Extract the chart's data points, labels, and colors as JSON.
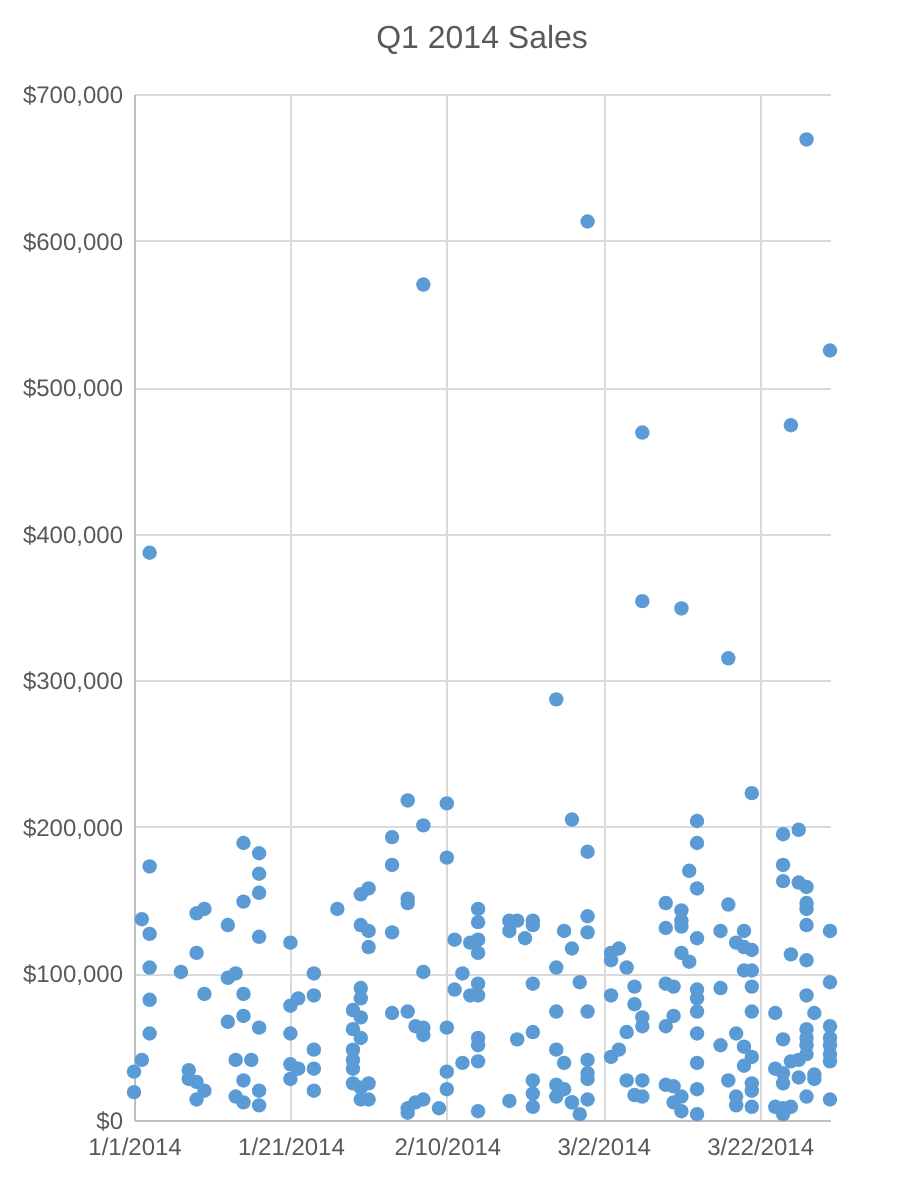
{
  "chart_data": {
    "type": "scatter",
    "title": "Q1 2014 Sales",
    "marker": "circle",
    "grid": true,
    "xlim": [
      "2014-01-01",
      "2014-03-31"
    ],
    "xticks": [
      {
        "value": "2014-01-01",
        "label": "1/1/2014"
      },
      {
        "value": "2014-01-21",
        "label": "1/21/2014"
      },
      {
        "value": "2014-02-10",
        "label": "2/10/2014"
      },
      {
        "value": "2014-03-02",
        "label": "3/2/2014"
      },
      {
        "value": "2014-03-22",
        "label": "3/22/2014"
      }
    ],
    "ylim": [
      0,
      700000
    ],
    "yticks": [
      {
        "value": 0,
        "label": "$0"
      },
      {
        "value": 100000,
        "label": "$100,000"
      },
      {
        "value": 200000,
        "label": "$200,000"
      },
      {
        "value": 300000,
        "label": "$300,000"
      },
      {
        "value": 400000,
        "label": "$400,000"
      },
      {
        "value": 500000,
        "label": "$500,000"
      },
      {
        "value": 600000,
        "label": "$600,000"
      },
      {
        "value": 700000,
        "label": "$700,000"
      }
    ],
    "series": [
      {
        "color": "#5b9bd5",
        "x": [
          "2014-01-01",
          "2014-01-01",
          "2014-01-02",
          "2014-01-02",
          "2014-01-03",
          "2014-01-03",
          "2014-01-03",
          "2014-01-03",
          "2014-01-03",
          "2014-01-03",
          "2014-01-07",
          "2014-01-08",
          "2014-01-08",
          "2014-01-09",
          "2014-01-09",
          "2014-01-09",
          "2014-01-09",
          "2014-01-10",
          "2014-01-10",
          "2014-01-10",
          "2014-01-13",
          "2014-01-13",
          "2014-01-13",
          "2014-01-14",
          "2014-01-14",
          "2014-01-14",
          "2014-01-15",
          "2014-01-15",
          "2014-01-15",
          "2014-01-15",
          "2014-01-15",
          "2014-01-15",
          "2014-01-16",
          "2014-01-17",
          "2014-01-17",
          "2014-01-17",
          "2014-01-17",
          "2014-01-17",
          "2014-01-17",
          "2014-01-17",
          "2014-01-21",
          "2014-01-21",
          "2014-01-21",
          "2014-01-21",
          "2014-01-21",
          "2014-01-22",
          "2014-01-22",
          "2014-01-24",
          "2014-01-24",
          "2014-01-24",
          "2014-01-24",
          "2014-01-24",
          "2014-01-27",
          "2014-01-29",
          "2014-01-29",
          "2014-01-29",
          "2014-01-29",
          "2014-01-29",
          "2014-01-29",
          "2014-01-30",
          "2014-01-30",
          "2014-01-30",
          "2014-01-30",
          "2014-01-30",
          "2014-01-30",
          "2014-01-30",
          "2014-01-30",
          "2014-01-31",
          "2014-01-31",
          "2014-01-31",
          "2014-01-31",
          "2014-01-31",
          "2014-02-03",
          "2014-02-03",
          "2014-02-03",
          "2014-02-03",
          "2014-02-05",
          "2014-02-05",
          "2014-02-05",
          "2014-02-05",
          "2014-02-05",
          "2014-02-05",
          "2014-02-06",
          "2014-02-06",
          "2014-02-07",
          "2014-02-07",
          "2014-02-07",
          "2014-02-07",
          "2014-02-07",
          "2014-02-07",
          "2014-02-09",
          "2014-02-10",
          "2014-02-10",
          "2014-02-10",
          "2014-02-10",
          "2014-02-10",
          "2014-02-11",
          "2014-02-11",
          "2014-02-12",
          "2014-02-12",
          "2014-02-13",
          "2014-02-13",
          "2014-02-14",
          "2014-02-14",
          "2014-02-14",
          "2014-02-14",
          "2014-02-14",
          "2014-02-14",
          "2014-02-14",
          "2014-02-14",
          "2014-02-14",
          "2014-02-14",
          "2014-02-18",
          "2014-02-18",
          "2014-02-18",
          "2014-02-19",
          "2014-02-19",
          "2014-02-20",
          "2014-02-21",
          "2014-02-21",
          "2014-02-21",
          "2014-02-21",
          "2014-02-21",
          "2014-02-21",
          "2014-02-21",
          "2014-02-24",
          "2014-02-24",
          "2014-02-24",
          "2014-02-24",
          "2014-02-24",
          "2014-02-24",
          "2014-02-25",
          "2014-02-25",
          "2014-02-25",
          "2014-02-26",
          "2014-02-26",
          "2014-02-26",
          "2014-02-26",
          "2014-02-27",
          "2014-02-27",
          "2014-02-28",
          "2014-02-28",
          "2014-02-28",
          "2014-02-28",
          "2014-02-28",
          "2014-02-28",
          "2014-02-28",
          "2014-02-28",
          "2014-02-28",
          "2014-03-03",
          "2014-03-03",
          "2014-03-03",
          "2014-03-03",
          "2014-03-04",
          "2014-03-04",
          "2014-03-05",
          "2014-03-05",
          "2014-03-05",
          "2014-03-06",
          "2014-03-06",
          "2014-03-06",
          "2014-03-07",
          "2014-03-07",
          "2014-03-07",
          "2014-03-07",
          "2014-03-07",
          "2014-03-07",
          "2014-03-10",
          "2014-03-10",
          "2014-03-10",
          "2014-03-10",
          "2014-03-10",
          "2014-03-11",
          "2014-03-11",
          "2014-03-11",
          "2014-03-11",
          "2014-03-12",
          "2014-03-12",
          "2014-03-12",
          "2014-03-12",
          "2014-03-12",
          "2014-03-12",
          "2014-03-12",
          "2014-03-13",
          "2014-03-13",
          "2014-03-14",
          "2014-03-14",
          "2014-03-14",
          "2014-03-14",
          "2014-03-14",
          "2014-03-14",
          "2014-03-14",
          "2014-03-14",
          "2014-03-14",
          "2014-03-14",
          "2014-03-14",
          "2014-03-17",
          "2014-03-17",
          "2014-03-17",
          "2014-03-18",
          "2014-03-18",
          "2014-03-18",
          "2014-03-19",
          "2014-03-19",
          "2014-03-19",
          "2014-03-19",
          "2014-03-20",
          "2014-03-20",
          "2014-03-20",
          "2014-03-20",
          "2014-03-20",
          "2014-03-21",
          "2014-03-21",
          "2014-03-21",
          "2014-03-21",
          "2014-03-21",
          "2014-03-21",
          "2014-03-21",
          "2014-03-21",
          "2014-03-21",
          "2014-03-24",
          "2014-03-24",
          "2014-03-24",
          "2014-03-25",
          "2014-03-25",
          "2014-03-25",
          "2014-03-25",
          "2014-03-25",
          "2014-03-25",
          "2014-03-25",
          "2014-03-25",
          "2014-03-26",
          "2014-03-26",
          "2014-03-26",
          "2014-03-26",
          "2014-03-27",
          "2014-03-27",
          "2014-03-27",
          "2014-03-27",
          "2014-03-28",
          "2014-03-28",
          "2014-03-28",
          "2014-03-28",
          "2014-03-28",
          "2014-03-28",
          "2014-03-28",
          "2014-03-28",
          "2014-03-28",
          "2014-03-28",
          "2014-03-28",
          "2014-03-28",
          "2014-03-29",
          "2014-03-29",
          "2014-03-29",
          "2014-03-31",
          "2014-03-31",
          "2014-03-31",
          "2014-03-31",
          "2014-03-31",
          "2014-03-31",
          "2014-03-31",
          "2014-03-31",
          "2014-03-31"
        ],
        "values": [
          33000,
          19000,
          137000,
          41000,
          387000,
          173000,
          127000,
          104000,
          82000,
          59000,
          101000,
          34000,
          28000,
          141000,
          114000,
          26000,
          14000,
          144000,
          86000,
          20000,
          133000,
          97000,
          67000,
          100000,
          41000,
          16000,
          189000,
          149000,
          86000,
          71000,
          27000,
          12000,
          41000,
          182000,
          168000,
          155000,
          125000,
          63000,
          20000,
          10000,
          121000,
          78000,
          59000,
          38000,
          28000,
          83000,
          35000,
          100000,
          85000,
          48000,
          35000,
          20000,
          144000,
          75000,
          62000,
          48000,
          41000,
          35000,
          25000,
          154000,
          133000,
          90000,
          83000,
          70000,
          56000,
          22000,
          14000,
          158000,
          129000,
          118000,
          25000,
          14000,
          193000,
          174000,
          128000,
          73000,
          218000,
          151000,
          148000,
          74000,
          8000,
          5000,
          64000,
          12000,
          570000,
          201000,
          101000,
          63000,
          58000,
          14000,
          8000,
          216000,
          179000,
          63000,
          33000,
          21000,
          123000,
          89000,
          100000,
          39000,
          121000,
          85000,
          144000,
          135000,
          123000,
          114000,
          93000,
          85000,
          56000,
          51000,
          40000,
          6000,
          136000,
          129000,
          13000,
          136000,
          55000,
          124000,
          136000,
          133000,
          93000,
          60000,
          27000,
          18000,
          9000,
          287000,
          104000,
          74000,
          48000,
          24000,
          16000,
          129000,
          39000,
          21000,
          205000,
          117000,
          12000,
          12000,
          94000,
          4000,
          613000,
          183000,
          139000,
          128000,
          74000,
          41000,
          32000,
          28000,
          14000,
          114000,
          109000,
          85000,
          43000,
          117000,
          48000,
          104000,
          60000,
          27000,
          91000,
          79000,
          17000,
          469000,
          354000,
          70000,
          64000,
          16000,
          27000,
          148000,
          131000,
          93000,
          64000,
          24000,
          91000,
          71000,
          23000,
          12000,
          349000,
          143000,
          136000,
          132000,
          114000,
          16000,
          6000,
          170000,
          108000,
          204000,
          189000,
          158000,
          124000,
          89000,
          83000,
          74000,
          59000,
          39000,
          21000,
          4000,
          129000,
          90000,
          51000,
          315000,
          147000,
          27000,
          121000,
          59000,
          16000,
          10000,
          129000,
          118000,
          102000,
          50000,
          37000,
          223000,
          116000,
          102000,
          91000,
          74000,
          43000,
          25000,
          20000,
          9000,
          73000,
          35000,
          9000,
          195000,
          174000,
          163000,
          55000,
          32000,
          25000,
          8000,
          4000,
          474000,
          113000,
          40000,
          9000,
          198000,
          162000,
          41000,
          29000,
          669000,
          159000,
          148000,
          144000,
          133000,
          109000,
          85000,
          62000,
          56000,
          51000,
          45000,
          16000,
          73000,
          31000,
          28000,
          525000,
          129000,
          94000,
          64000,
          56000,
          51000,
          45000,
          40000,
          14000
        ]
      }
    ]
  }
}
